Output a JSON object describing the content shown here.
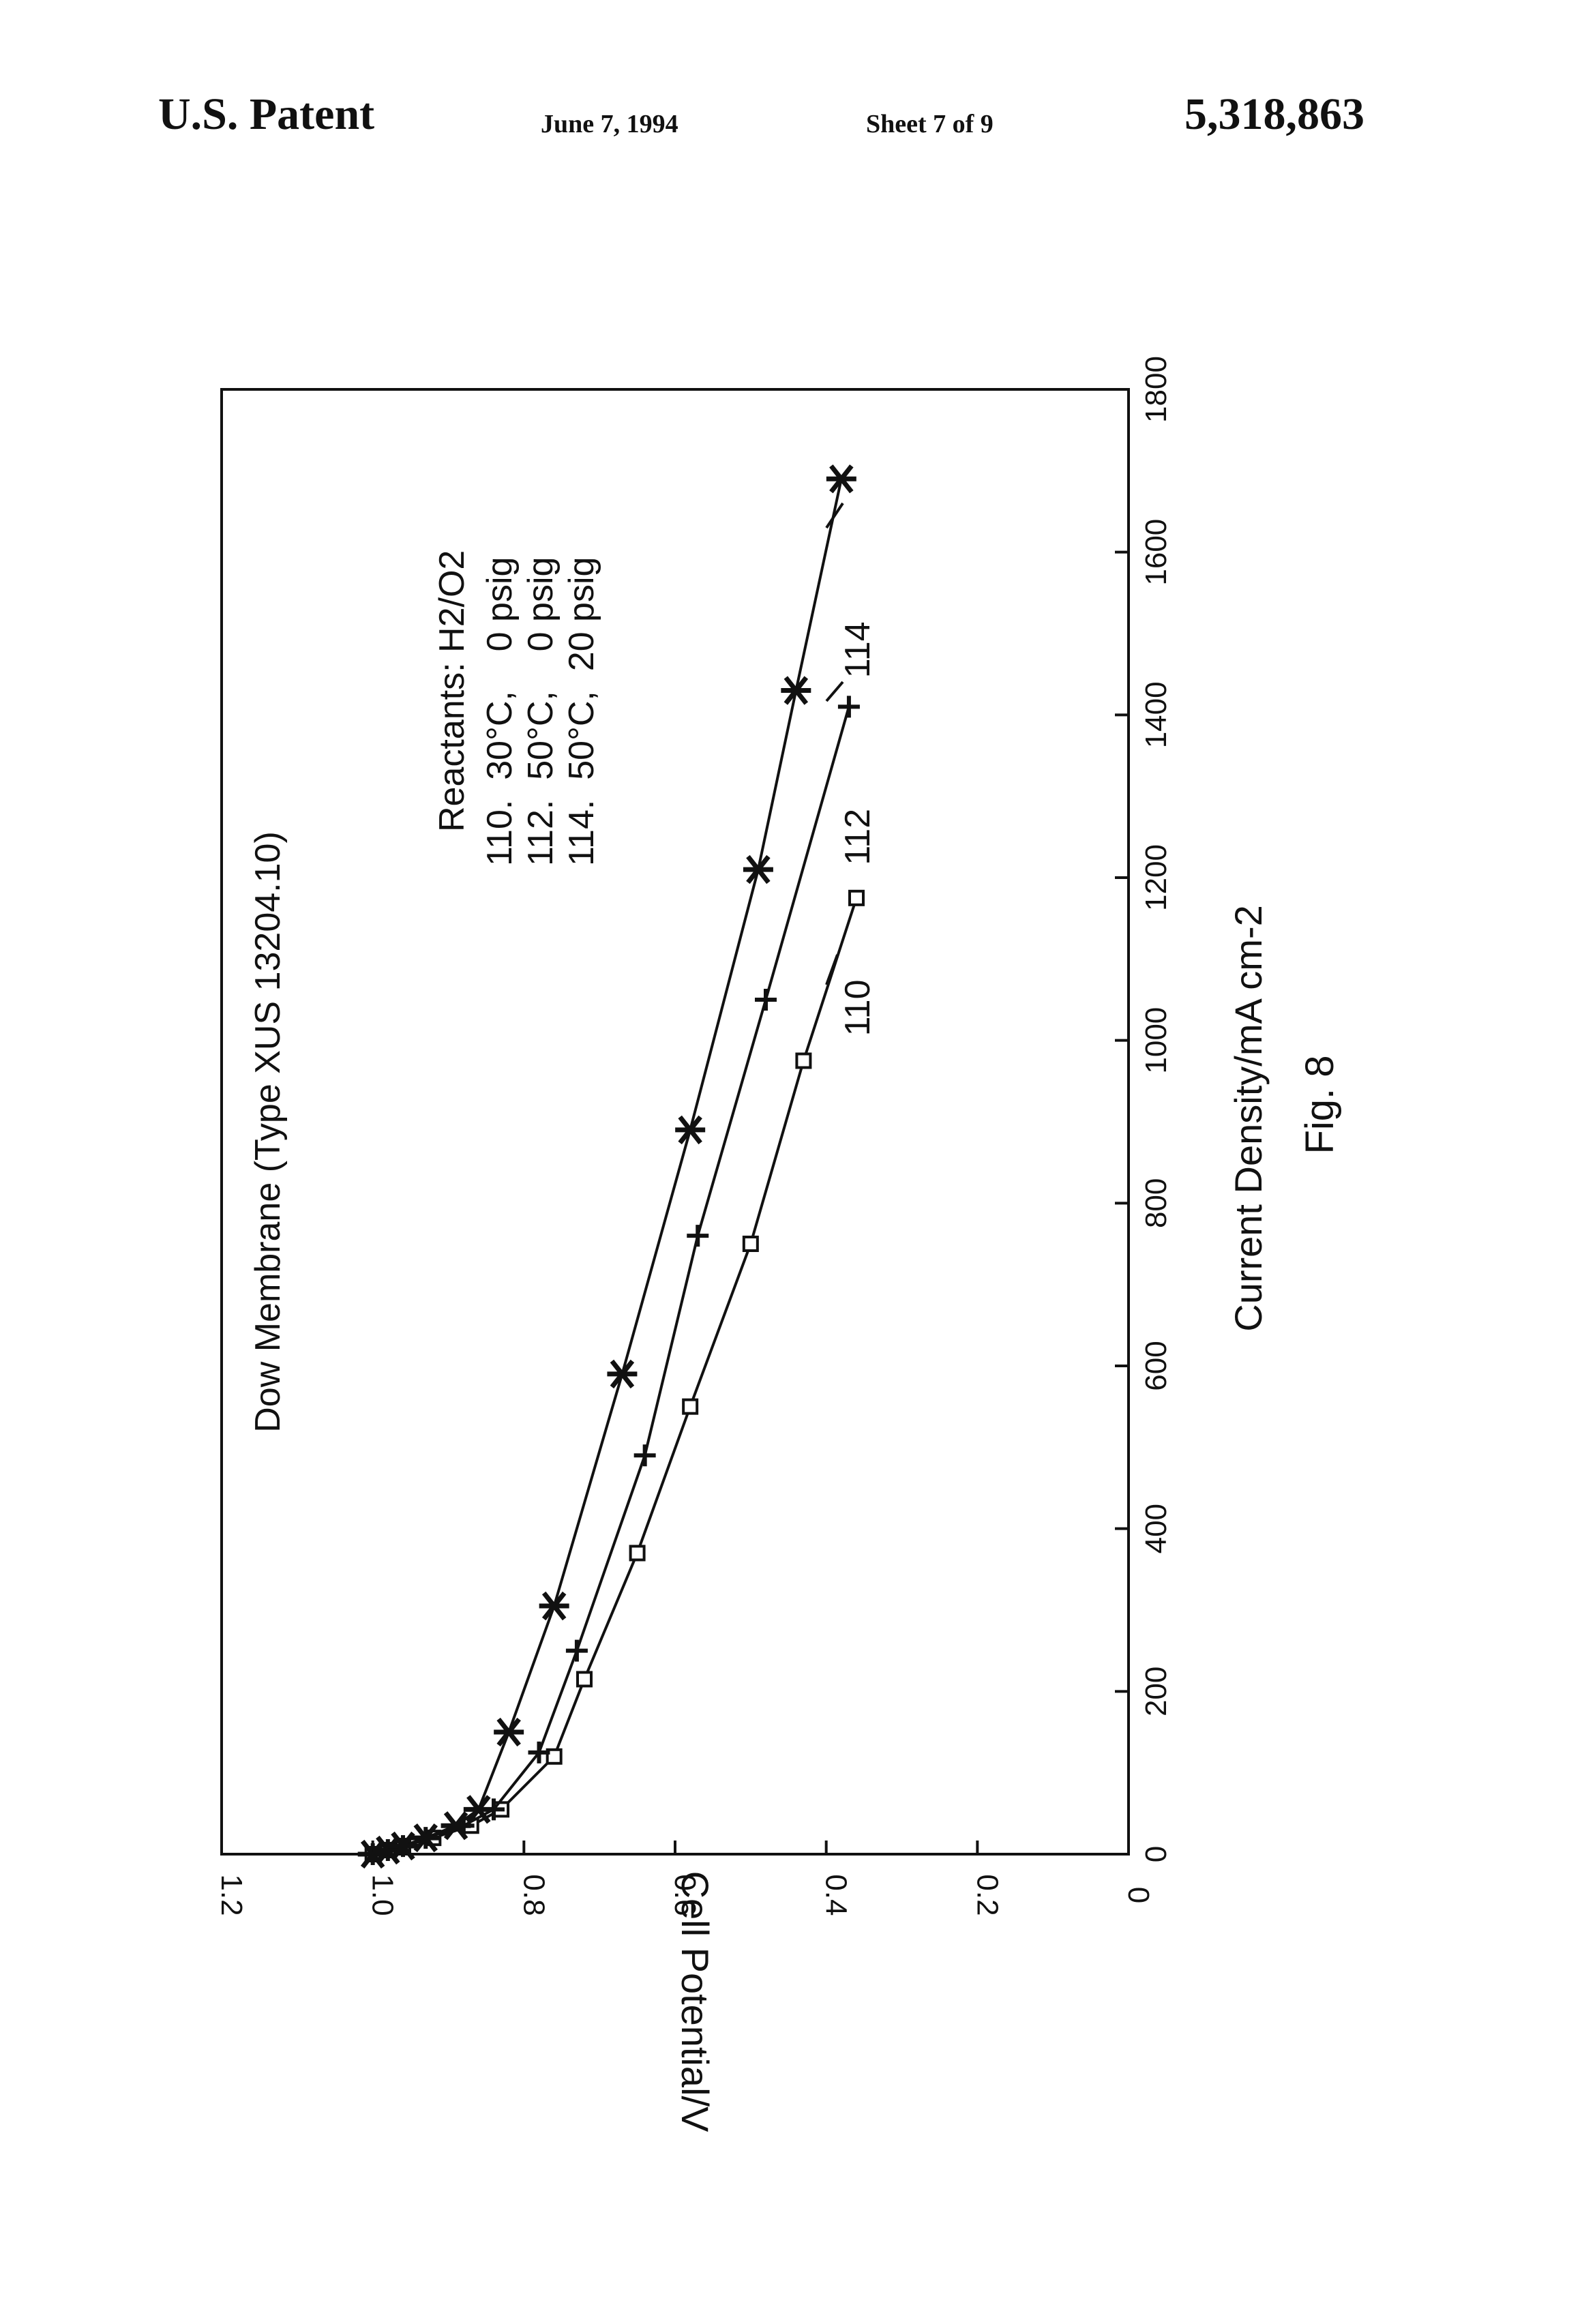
{
  "header": {
    "patent_label": "U.S. Patent",
    "date": "June 7, 1994",
    "sheet": "Sheet 7 of 9",
    "patent_number": "5,318,863"
  },
  "chart_data": {
    "type": "line",
    "title": "Dow Membrane (Type XUS 13204.10)",
    "xlabel": "Current Density/mA cm-2",
    "ylabel": "Cell Potential/V",
    "xlim": [
      0,
      1800
    ],
    "ylim": [
      0,
      1.2
    ],
    "x_ticks": [
      "0",
      "200",
      "400",
      "600",
      "800",
      "1000",
      "1200",
      "1400",
      "1600",
      "1800"
    ],
    "y_ticks": [
      "0",
      "0.2",
      "0.4",
      "0.6",
      "0.8",
      "1.0",
      "1.2"
    ],
    "grid": false,
    "orientation": "rotated 90° counter-clockwise on page",
    "legend": {
      "title": "Reactants: H2/O2",
      "entries": [
        "110.  30°C,    0 psig",
        "112.  50°C,    0 psig",
        "114.  50°C,  20 psig"
      ]
    },
    "series": [
      {
        "name": "110",
        "marker": "square",
        "x": [
          0,
          5,
          10,
          20,
          35,
          55,
          120,
          215,
          370,
          550,
          750,
          975,
          1175
        ],
        "y": [
          1.0,
          0.98,
          0.96,
          0.92,
          0.87,
          0.83,
          0.76,
          0.72,
          0.65,
          0.58,
          0.5,
          0.43,
          0.36
        ]
      },
      {
        "name": "112",
        "marker": "plus",
        "x": [
          0,
          5,
          10,
          20,
          35,
          55,
          125,
          250,
          490,
          760,
          1050,
          1410
        ],
        "y": [
          1.0,
          0.98,
          0.96,
          0.93,
          0.88,
          0.84,
          0.78,
          0.73,
          0.64,
          0.57,
          0.48,
          0.37
        ]
      },
      {
        "name": "114",
        "marker": "asterisk",
        "x": [
          0,
          5,
          10,
          20,
          35,
          55,
          150,
          305,
          590,
          890,
          1210,
          1430,
          1690
        ],
        "y": [
          1.0,
          0.98,
          0.96,
          0.93,
          0.89,
          0.86,
          0.82,
          0.76,
          0.67,
          0.58,
          0.49,
          0.44,
          0.38
        ]
      }
    ],
    "curve_labels": [
      "110",
      "112",
      "114"
    ],
    "figure_label": "Fig. 8"
  }
}
